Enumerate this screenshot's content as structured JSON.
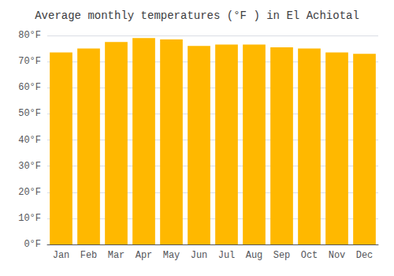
{
  "chart_data": {
    "type": "bar",
    "title": "Average monthly temperatures (°F ) in El Achiotal",
    "categories": [
      "Jan",
      "Feb",
      "Mar",
      "Apr",
      "May",
      "Jun",
      "Jul",
      "Aug",
      "Sep",
      "Oct",
      "Nov",
      "Dec"
    ],
    "values": [
      73.5,
      75.0,
      77.5,
      79.0,
      78.5,
      76.0,
      76.5,
      76.5,
      75.5,
      75.0,
      73.5,
      73.0
    ],
    "color": "#FFB800",
    "ylim": [
      0,
      80
    ],
    "yticks": [
      {
        "value": 0,
        "label": "0°F"
      },
      {
        "value": 10,
        "label": "10°F"
      },
      {
        "value": 20,
        "label": "20°F"
      },
      {
        "value": 30,
        "label": "30°F"
      },
      {
        "value": 40,
        "label": "40°F"
      },
      {
        "value": 50,
        "label": "50°F"
      },
      {
        "value": 60,
        "label": "60°F"
      },
      {
        "value": 70,
        "label": "70°F"
      },
      {
        "value": 80,
        "label": "80°F"
      }
    ],
    "grid": true
  }
}
